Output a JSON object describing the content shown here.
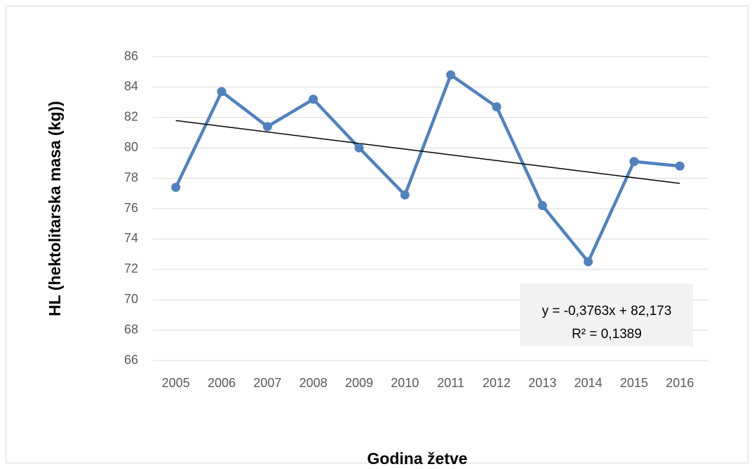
{
  "chart_data": {
    "type": "line",
    "x_label": "Godina žetve",
    "y_label": "HL (hektolitarska masa (kg))",
    "categories": [
      "2005",
      "2006",
      "2007",
      "2008",
      "2009",
      "2010",
      "2011",
      "2012",
      "2013",
      "2014",
      "2015",
      "2016"
    ],
    "series": [
      {
        "name": "HL",
        "color": "#4f81bd",
        "values": [
          77.4,
          83.7,
          81.4,
          83.2,
          80.0,
          76.9,
          84.8,
          82.7,
          76.2,
          72.5,
          79.1,
          78.8
        ]
      }
    ],
    "ylim": [
      66,
      86
    ],
    "yticks": [
      66,
      68,
      70,
      72,
      74,
      76,
      78,
      80,
      82,
      84,
      86
    ],
    "grid": true,
    "trendline": {
      "equation": "y = -0,3763x + 82,173",
      "r2": "R² = 0,1389",
      "slope": -0.3763,
      "intercept": 82.173,
      "color": "#000000"
    }
  }
}
